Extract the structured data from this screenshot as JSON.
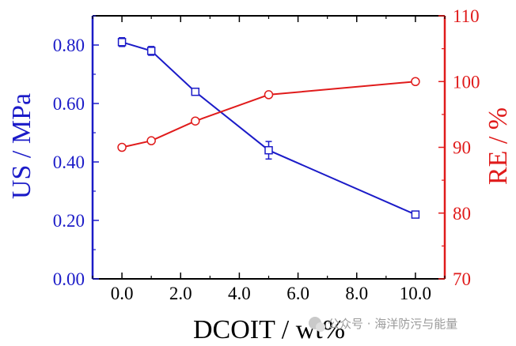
{
  "chart_data": {
    "type": "line",
    "x_axis": {
      "label": "DCOIT / wt%",
      "range": [
        -1.0,
        11.0
      ],
      "ticks": [
        0.0,
        2.0,
        4.0,
        6.0,
        8.0,
        10.0
      ],
      "tick_labels": [
        "0.0",
        "2.0",
        "4.0",
        "6.0",
        "8.0",
        "10.0"
      ]
    },
    "y_left": {
      "label": "US / MPa",
      "color": "#1b1bc8",
      "range": [
        0.0,
        0.9
      ],
      "ticks": [
        0.0,
        0.2,
        0.4,
        0.6,
        0.8
      ],
      "tick_labels": [
        "0.00",
        "0.20",
        "0.40",
        "0.60",
        "0.80"
      ]
    },
    "y_right": {
      "label": "RE / %",
      "color": "#e01b1b",
      "range": [
        70,
        110
      ],
      "ticks": [
        70,
        80,
        90,
        100,
        110
      ],
      "tick_labels": [
        "70",
        "80",
        "90",
        "100",
        "110"
      ]
    },
    "series": [
      {
        "axis": "left",
        "color": "#1b1bc8",
        "marker": "open-square",
        "x": [
          0.0,
          1.0,
          2.5,
          5.0,
          10.0
        ],
        "y": [
          0.81,
          0.78,
          0.64,
          0.44,
          0.22
        ],
        "error": [
          0.015,
          0.015,
          0.007,
          0.03,
          0.007
        ]
      },
      {
        "axis": "right",
        "color": "#e01b1b",
        "marker": "open-circle",
        "x": [
          0.0,
          1.0,
          2.5,
          5.0,
          10.0
        ],
        "y": [
          90,
          91,
          94,
          98,
          100
        ]
      }
    ],
    "grid": false,
    "legend": "none"
  },
  "watermark": {
    "text": "公众号 · 海洋防污与能量"
  }
}
